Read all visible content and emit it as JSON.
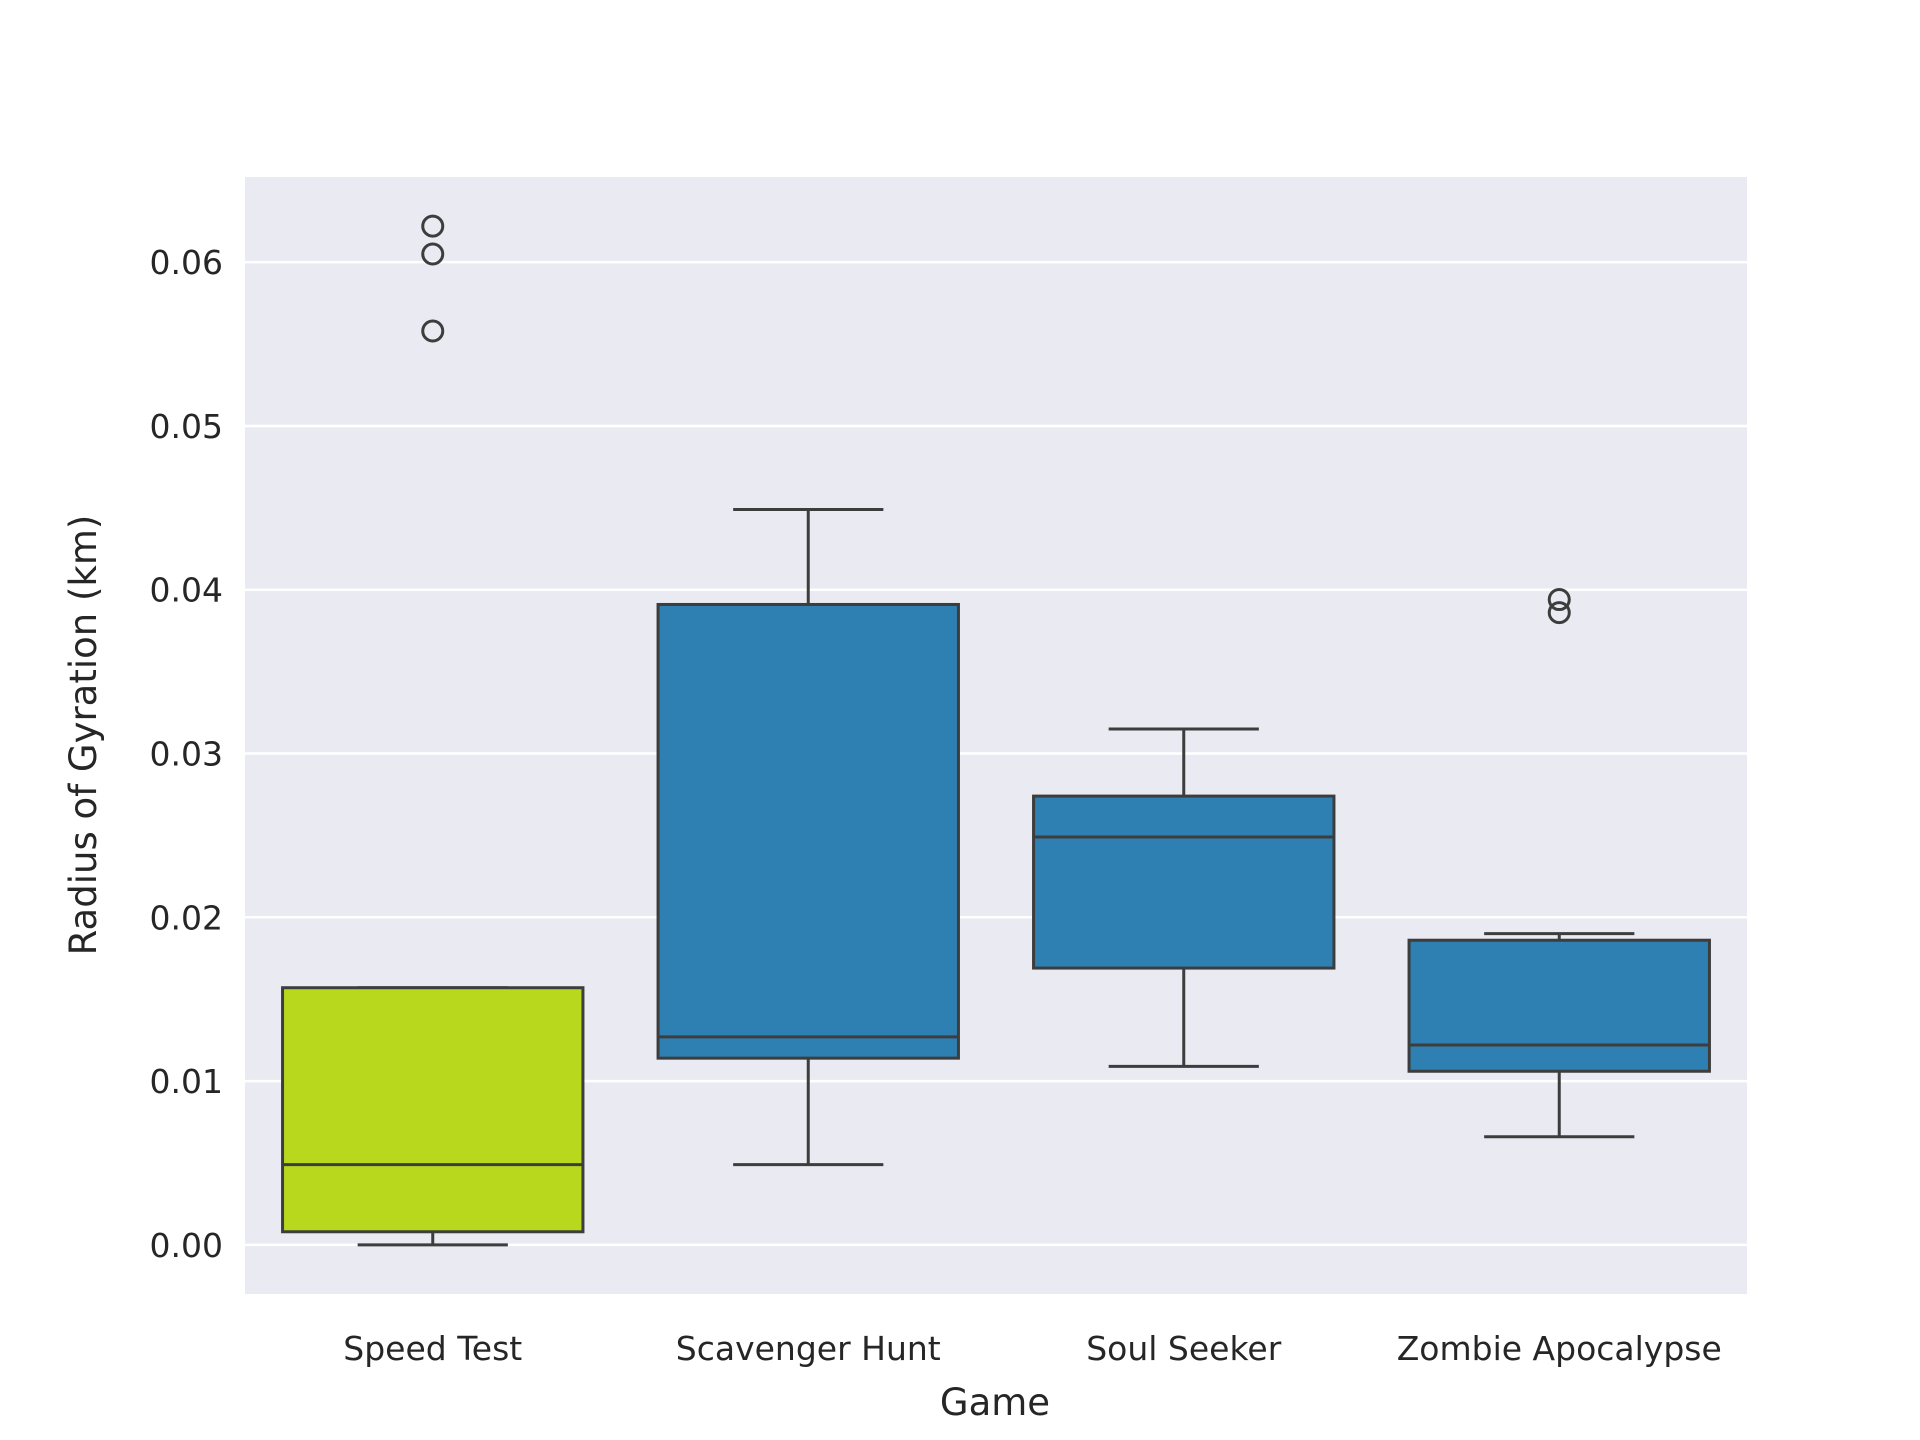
{
  "chart_data": {
    "type": "box",
    "title": "",
    "xlabel": "Game",
    "ylabel": "Radius of Gyration (km)",
    "ylim": [
      -0.003,
      0.0652
    ],
    "y_ticks": [
      0.0,
      0.01,
      0.02,
      0.03,
      0.04,
      0.05,
      0.06
    ],
    "y_tick_labels": [
      "0.00",
      "0.01",
      "0.02",
      "0.03",
      "0.04",
      "0.05",
      "0.06"
    ],
    "grid": true,
    "legend": "none",
    "categories": [
      "Speed Test",
      "Scavenger Hunt",
      "Soul Seeker",
      "Zombie Apocalypse"
    ],
    "boxes": [
      {
        "category": "Speed Test",
        "whisker_low": 0.0,
        "q1": 0.0008,
        "median": 0.0049,
        "q3": 0.0157,
        "whisker_high": 0.0157,
        "outliers": [
          0.0558,
          0.0605,
          0.0622
        ],
        "color": "#b8d81e"
      },
      {
        "category": "Scavenger Hunt",
        "whisker_low": 0.0049,
        "q1": 0.0114,
        "median": 0.0127,
        "q3": 0.0391,
        "whisker_high": 0.0449,
        "outliers": [],
        "color": "#2e7fb2"
      },
      {
        "category": "Soul Seeker",
        "whisker_low": 0.0109,
        "q1": 0.0169,
        "median": 0.0249,
        "q3": 0.0274,
        "whisker_high": 0.0315,
        "outliers": [],
        "color": "#2e7fb2"
      },
      {
        "category": "Zombie Apocalypse",
        "whisker_low": 0.0066,
        "q1": 0.0106,
        "median": 0.0122,
        "q3": 0.0186,
        "whisker_high": 0.019,
        "outliers": [
          0.0386,
          0.0394
        ],
        "color": "#2e7fb2"
      }
    ],
    "colors": {
      "plot_background": "#eaeaf2",
      "grid": "#ffffff",
      "line": "#3d3d3d"
    }
  }
}
